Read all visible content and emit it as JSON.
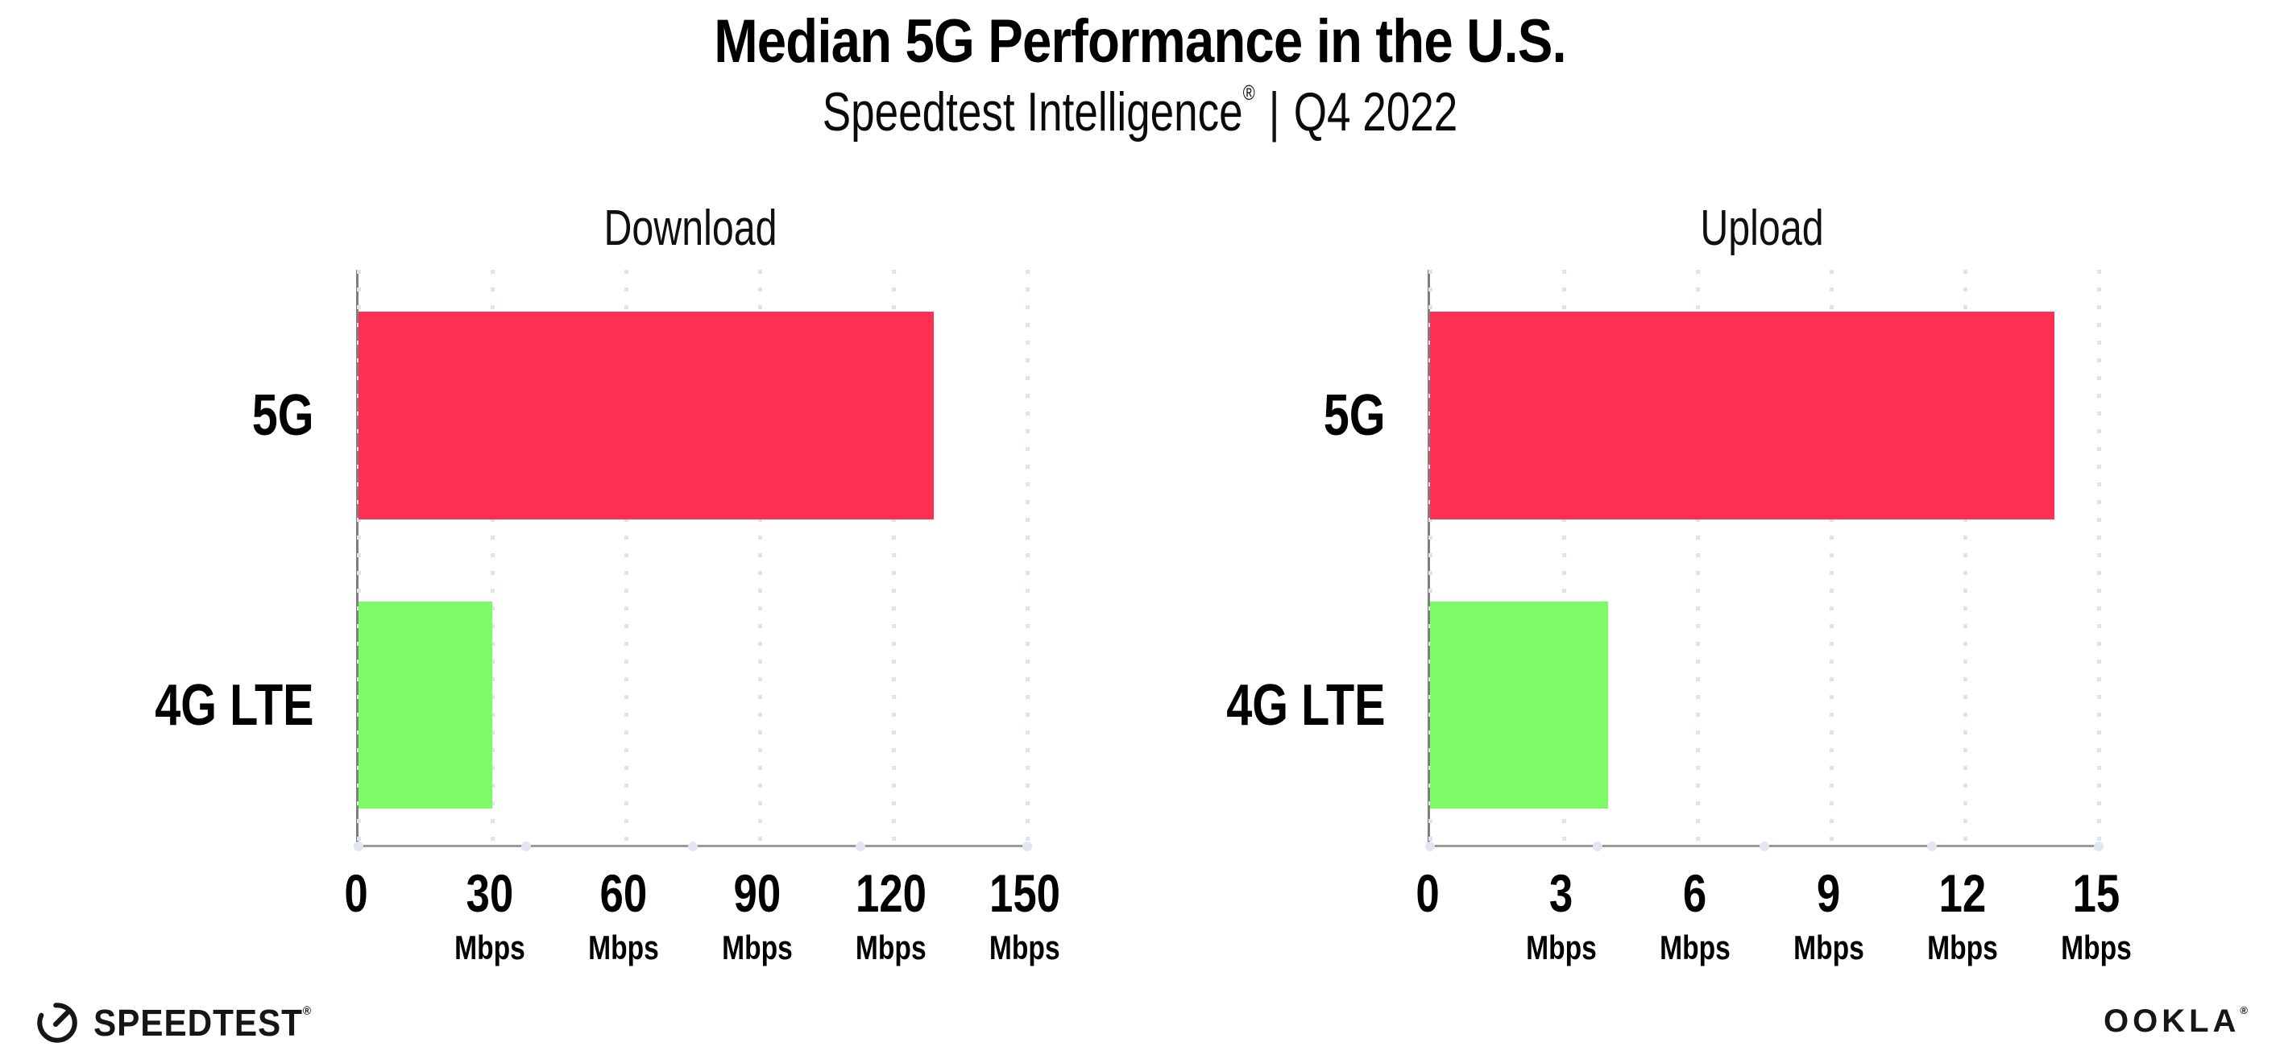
{
  "header": {
    "title": "Median 5G Performance in the U.S.",
    "subtitle_brand": "Speedtest Intelligence",
    "subtitle_reg": "®",
    "subtitle_sep": "|",
    "subtitle_period": "Q4 2022"
  },
  "chart_data": [
    {
      "type": "bar",
      "orientation": "horizontal",
      "title": "Download",
      "categories": [
        "5G",
        "4G LTE"
      ],
      "values": [
        129,
        30
      ],
      "unit": "Mbps",
      "xlim": [
        0,
        150
      ],
      "xticks": [
        0,
        30,
        60,
        90,
        120,
        150
      ],
      "bar_colors": [
        "#ff2f54",
        "#7dfb66"
      ],
      "grid": "dotted-vertical-gridlines"
    },
    {
      "type": "bar",
      "orientation": "horizontal",
      "title": "Upload",
      "categories": [
        "5G",
        "4G LTE"
      ],
      "values": [
        14,
        4
      ],
      "unit": "Mbps",
      "xlim": [
        0,
        15
      ],
      "xticks": [
        0,
        3,
        6,
        9,
        12,
        15
      ],
      "bar_colors": [
        "#ff2f54",
        "#7dfb66"
      ],
      "grid": "dotted-vertical-gridlines"
    }
  ],
  "colors": {
    "bar_5g": "#ff2f54",
    "bar_4g_lte": "#7dfb66",
    "gridline": "#dfe3ee",
    "axis": "#9a9a9a",
    "text": "#000000"
  },
  "footer": {
    "speedtest_label": "SPEEDTEST",
    "speedtest_mark": "®",
    "ookla_label": "OOKLA",
    "ookla_mark": "®"
  }
}
